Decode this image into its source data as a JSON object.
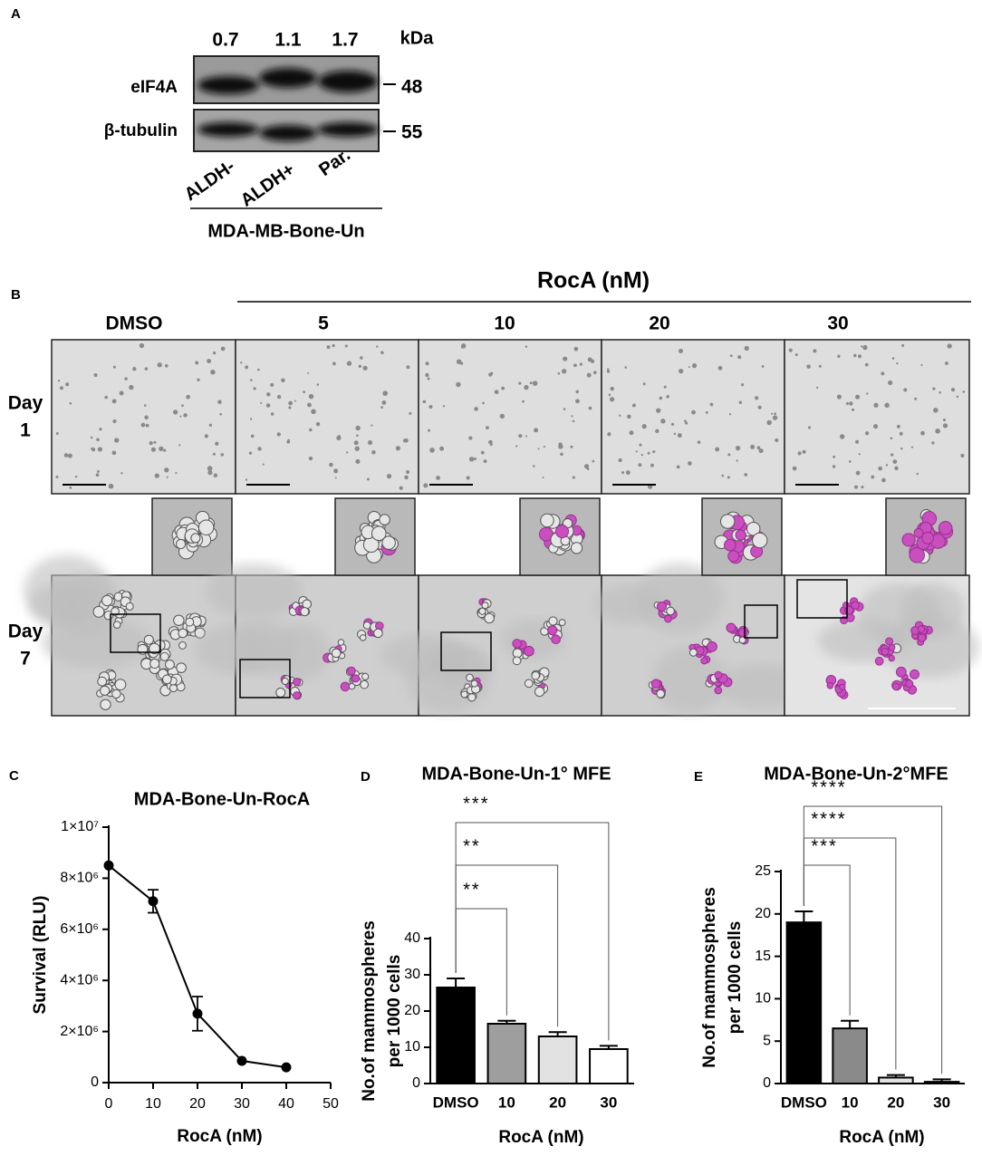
{
  "panel_a": {
    "label": "A",
    "quantification": [
      0.7,
      1.1,
      1.7
    ],
    "unit": "kDa",
    "rows": [
      {
        "name": "eIF4A",
        "marker": 48
      },
      {
        "name": "β-tubulin",
        "marker": 55
      }
    ],
    "lanes": [
      "ALDH-",
      "ALDH+",
      "Par."
    ],
    "cell_line": "MDA-MB-Bone-Un"
  },
  "panel_b": {
    "label": "B",
    "treatment": "RocA (nM)",
    "columns": [
      "DMSO",
      "5",
      "10",
      "20",
      "30"
    ],
    "rows": [
      [
        "Day",
        "1"
      ],
      [
        "Day",
        "7"
      ]
    ]
  },
  "chart_data": [
    {
      "type": "line",
      "panel_label": "C",
      "title": "MDA-Bone-Un-RocA",
      "x_label": "RocA (nM)",
      "y_label": [
        "Survival (RLU)"
      ],
      "x": [
        0,
        10,
        20,
        30,
        40
      ],
      "values": [
        8500000,
        7100000,
        2700000,
        850000,
        600000
      ],
      "errors": [
        null,
        450000,
        670000,
        null,
        null
      ],
      "color": "#000000",
      "xlim": [
        0,
        50
      ],
      "xticks": [
        0,
        10,
        20,
        30,
        40,
        50
      ],
      "ylim": [
        0,
        10000000
      ],
      "yticks": [
        0,
        {
          "value": 2000000,
          "label": "2×10⁶"
        },
        {
          "value": 4000000,
          "label": "4×10⁶"
        },
        {
          "value": 6000000,
          "label": "6×10⁶"
        },
        {
          "value": 8000000,
          "label": "8×10⁶"
        },
        {
          "value": 10000000,
          "label": "1×10⁷"
        }
      ]
    },
    {
      "type": "bar",
      "panel_label": "D",
      "title": "MDA-Bone-Un-1° MFE",
      "x_label": "RocA (nM)",
      "y_label": [
        "No.of mammospheres",
        "per 1000 cells"
      ],
      "categories": [
        "DMSO",
        "10",
        "20",
        "30"
      ],
      "values": [
        26.5,
        16.5,
        13,
        9.5
      ],
      "errors": [
        2.5,
        0.8,
        1.2,
        0.9
      ],
      "colors": [
        "#000000",
        "#9e9e9e",
        "#e2e2e2",
        "#ffffff"
      ],
      "ylim": [
        0,
        40
      ],
      "yticks": [
        0,
        10,
        20,
        30,
        40
      ],
      "comparisons": [
        {
          "label": "***",
          "categories": [
            "DMSO",
            "30"
          ]
        },
        {
          "label": "**",
          "categories": [
            "DMSO",
            "20"
          ]
        },
        {
          "label": "**",
          "categories": [
            "DMSO",
            "10"
          ]
        }
      ]
    },
    {
      "type": "bar",
      "panel_label": "E",
      "title": "MDA-Bone-Un-2°MFE",
      "x_label": "RocA (nM)",
      "y_label": [
        "No.of mammospheres",
        "per 1000 cells"
      ],
      "categories": [
        "DMSO",
        "10",
        "20",
        "30"
      ],
      "values": [
        19,
        6.5,
        0.7,
        0.2
      ],
      "errors": [
        1.3,
        0.9,
        0.3,
        0.3
      ],
      "colors": [
        "#000000",
        "#8a8a8a",
        "#e2e2e2",
        "#ffffff"
      ],
      "ylim": [
        0,
        25
      ],
      "yticks": [
        0,
        5,
        10,
        15,
        20,
        25
      ],
      "comparisons": [
        {
          "label": "****",
          "categories": [
            "DMSO",
            "30"
          ]
        },
        {
          "label": "****",
          "categories": [
            "DMSO",
            "20"
          ]
        },
        {
          "label": "***",
          "categories": [
            "DMSO",
            "10"
          ]
        }
      ]
    }
  ]
}
